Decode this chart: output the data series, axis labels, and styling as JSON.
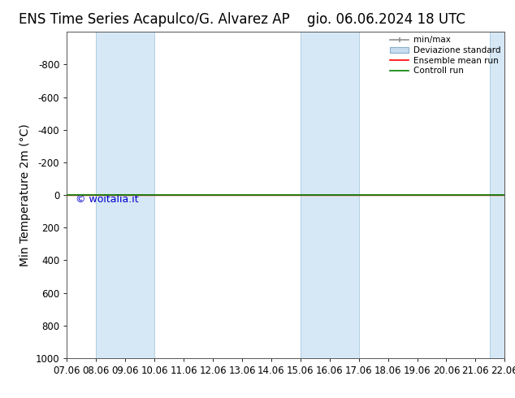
{
  "title_left": "ENS Time Series Acapulco/G. Alvarez AP",
  "title_right": "gio. 06.06.2024 18 UTC",
  "ylabel": "Min Temperature 2m (°C)",
  "xlabel_ticks": [
    "07.06",
    "08.06",
    "09.06",
    "10.06",
    "11.06",
    "12.06",
    "13.06",
    "14.06",
    "15.06",
    "16.06",
    "17.06",
    "18.06",
    "19.06",
    "20.06",
    "21.06",
    "22.06"
  ],
  "xlim": [
    0,
    15
  ],
  "ylim": [
    -1000,
    1000
  ],
  "yticks": [
    -800,
    -600,
    -400,
    -200,
    0,
    200,
    400,
    600,
    800,
    1000
  ],
  "shaded_bands": [
    {
      "x_start": 1,
      "x_end": 3
    },
    {
      "x_start": 8,
      "x_end": 10
    },
    {
      "x_start": 14.5,
      "x_end": 15
    }
  ],
  "horizontal_line_y": 0,
  "control_run_color": "#008000",
  "ensemble_mean_color": "#ff0000",
  "minmax_color": "#909090",
  "std_color": "#c8ddf0",
  "band_color": "#d6e8f5",
  "band_edge_color": "#aac8e0",
  "watermark": "© woitalia.it",
  "watermark_color": "#0000cc",
  "background_color": "#ffffff",
  "legend_labels": [
    "min/max",
    "Deviazione standard",
    "Ensemble mean run",
    "Controll run"
  ],
  "title_fontsize": 12,
  "tick_fontsize": 8.5,
  "ylabel_fontsize": 10
}
